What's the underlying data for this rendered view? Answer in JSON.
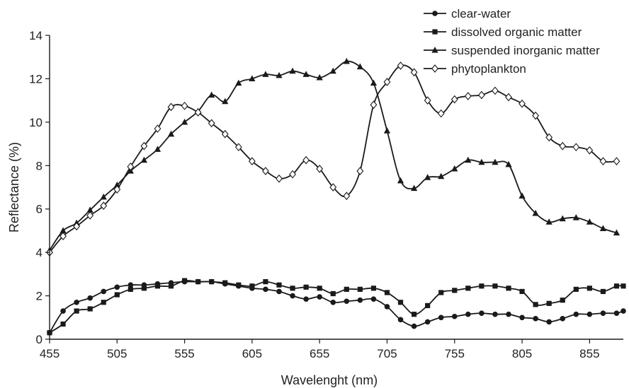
{
  "chart_data": {
    "type": "line",
    "title": "",
    "xlabel": "Wavelenght (nm)",
    "ylabel": "Reflectance (%)",
    "xlim": [
      455,
      880
    ],
    "ylim": [
      0,
      14
    ],
    "x_ticks": [
      455,
      505,
      555,
      605,
      655,
      705,
      755,
      805,
      855
    ],
    "y_ticks": [
      0,
      2,
      4,
      6,
      8,
      10,
      12,
      14
    ],
    "legend_position": "top-right",
    "grid": false,
    "colors": {
      "lines": "#1a1a1a",
      "marker_fill": "#1a1a1a",
      "hollow_fill": "#ffffff"
    },
    "series": [
      {
        "name": "clear-water",
        "marker": "circle",
        "points": [
          [
            455,
            0.3
          ],
          [
            465,
            1.3
          ],
          [
            475,
            1.7
          ],
          [
            485,
            1.9
          ],
          [
            495,
            2.2
          ],
          [
            505,
            2.4
          ],
          [
            515,
            2.5
          ],
          [
            525,
            2.5
          ],
          [
            535,
            2.55
          ],
          [
            545,
            2.6
          ],
          [
            555,
            2.65
          ],
          [
            565,
            2.65
          ],
          [
            575,
            2.65
          ],
          [
            585,
            2.55
          ],
          [
            595,
            2.45
          ],
          [
            605,
            2.35
          ],
          [
            615,
            2.3
          ],
          [
            625,
            2.2
          ],
          [
            635,
            2.0
          ],
          [
            645,
            1.85
          ],
          [
            655,
            1.95
          ],
          [
            665,
            1.7
          ],
          [
            675,
            1.75
          ],
          [
            685,
            1.8
          ],
          [
            695,
            1.85
          ],
          [
            705,
            1.5
          ],
          [
            715,
            0.9
          ],
          [
            725,
            0.6
          ],
          [
            735,
            0.8
          ],
          [
            745,
            1.0
          ],
          [
            755,
            1.05
          ],
          [
            765,
            1.15
          ],
          [
            775,
            1.2
          ],
          [
            785,
            1.15
          ],
          [
            795,
            1.15
          ],
          [
            805,
            1.0
          ],
          [
            815,
            0.95
          ],
          [
            825,
            0.8
          ],
          [
            835,
            0.95
          ],
          [
            845,
            1.15
          ],
          [
            855,
            1.15
          ],
          [
            865,
            1.2
          ],
          [
            875,
            1.2
          ],
          [
            880,
            1.3
          ]
        ]
      },
      {
        "name": "dissolved organic matter",
        "marker": "square",
        "points": [
          [
            455,
            0.3
          ],
          [
            465,
            0.7
          ],
          [
            475,
            1.3
          ],
          [
            485,
            1.4
          ],
          [
            495,
            1.7
          ],
          [
            505,
            2.05
          ],
          [
            515,
            2.3
          ],
          [
            525,
            2.35
          ],
          [
            535,
            2.45
          ],
          [
            545,
            2.45
          ],
          [
            555,
            2.7
          ],
          [
            565,
            2.65
          ],
          [
            575,
            2.65
          ],
          [
            585,
            2.6
          ],
          [
            595,
            2.5
          ],
          [
            605,
            2.45
          ],
          [
            615,
            2.65
          ],
          [
            625,
            2.5
          ],
          [
            635,
            2.35
          ],
          [
            645,
            2.4
          ],
          [
            655,
            2.35
          ],
          [
            665,
            2.1
          ],
          [
            675,
            2.3
          ],
          [
            685,
            2.3
          ],
          [
            695,
            2.35
          ],
          [
            705,
            2.15
          ],
          [
            715,
            1.7
          ],
          [
            725,
            1.15
          ],
          [
            735,
            1.55
          ],
          [
            745,
            2.15
          ],
          [
            755,
            2.25
          ],
          [
            765,
            2.35
          ],
          [
            775,
            2.45
          ],
          [
            785,
            2.45
          ],
          [
            795,
            2.35
          ],
          [
            805,
            2.2
          ],
          [
            815,
            1.6
          ],
          [
            825,
            1.65
          ],
          [
            835,
            1.8
          ],
          [
            845,
            2.3
          ],
          [
            855,
            2.35
          ],
          [
            865,
            2.2
          ],
          [
            875,
            2.45
          ],
          [
            880,
            2.45
          ]
        ]
      },
      {
        "name": "suspended inorganic matter",
        "marker": "triangle",
        "points": [
          [
            455,
            4.1
          ],
          [
            465,
            5.0
          ],
          [
            475,
            5.35
          ],
          [
            485,
            5.95
          ],
          [
            495,
            6.55
          ],
          [
            505,
            7.1
          ],
          [
            515,
            7.75
          ],
          [
            525,
            8.25
          ],
          [
            535,
            8.75
          ],
          [
            545,
            9.45
          ],
          [
            555,
            10.0
          ],
          [
            565,
            10.5
          ],
          [
            575,
            11.25
          ],
          [
            585,
            10.95
          ],
          [
            595,
            11.8
          ],
          [
            605,
            12.0
          ],
          [
            615,
            12.2
          ],
          [
            625,
            12.15
          ],
          [
            635,
            12.35
          ],
          [
            645,
            12.2
          ],
          [
            655,
            12.05
          ],
          [
            665,
            12.35
          ],
          [
            675,
            12.8
          ],
          [
            685,
            12.55
          ],
          [
            695,
            11.8
          ],
          [
            705,
            9.6
          ],
          [
            715,
            7.3
          ],
          [
            725,
            6.95
          ],
          [
            735,
            7.45
          ],
          [
            745,
            7.5
          ],
          [
            755,
            7.85
          ],
          [
            765,
            8.25
          ],
          [
            775,
            8.15
          ],
          [
            785,
            8.15
          ],
          [
            795,
            8.05
          ],
          [
            805,
            6.6
          ],
          [
            815,
            5.8
          ],
          [
            825,
            5.4
          ],
          [
            835,
            5.55
          ],
          [
            845,
            5.6
          ],
          [
            855,
            5.4
          ],
          [
            865,
            5.1
          ],
          [
            875,
            4.9
          ]
        ]
      },
      {
        "name": "phytoplankton",
        "marker": "diamond",
        "points": [
          [
            455,
            4.0
          ],
          [
            465,
            4.75
          ],
          [
            475,
            5.2
          ],
          [
            485,
            5.7
          ],
          [
            495,
            6.15
          ],
          [
            505,
            6.9
          ],
          [
            515,
            7.95
          ],
          [
            525,
            8.9
          ],
          [
            535,
            9.7
          ],
          [
            545,
            10.7
          ],
          [
            555,
            10.75
          ],
          [
            565,
            10.45
          ],
          [
            575,
            9.95
          ],
          [
            585,
            9.45
          ],
          [
            595,
            8.85
          ],
          [
            605,
            8.2
          ],
          [
            615,
            7.75
          ],
          [
            625,
            7.4
          ],
          [
            635,
            7.6
          ],
          [
            645,
            8.25
          ],
          [
            655,
            7.85
          ],
          [
            665,
            7.0
          ],
          [
            675,
            6.6
          ],
          [
            685,
            7.75
          ],
          [
            695,
            10.8
          ],
          [
            705,
            11.85
          ],
          [
            715,
            12.6
          ],
          [
            725,
            12.3
          ],
          [
            735,
            11.0
          ],
          [
            745,
            10.4
          ],
          [
            755,
            11.05
          ],
          [
            765,
            11.2
          ],
          [
            775,
            11.25
          ],
          [
            785,
            11.45
          ],
          [
            795,
            11.15
          ],
          [
            805,
            10.85
          ],
          [
            815,
            10.3
          ],
          [
            825,
            9.3
          ],
          [
            835,
            8.9
          ],
          [
            845,
            8.85
          ],
          [
            855,
            8.7
          ],
          [
            865,
            8.2
          ],
          [
            875,
            8.2
          ]
        ]
      }
    ]
  }
}
